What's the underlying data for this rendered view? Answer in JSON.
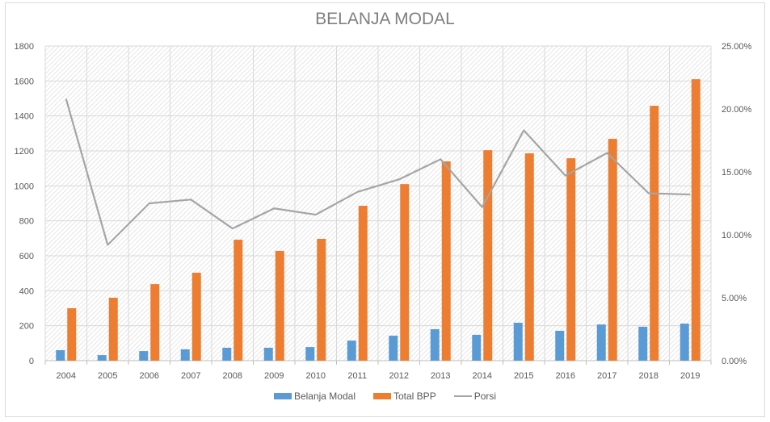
{
  "chart_data": {
    "type": "bar",
    "title": "BELANJA MODAL",
    "xlabel": "",
    "ylabel": "",
    "categories": [
      "2004",
      "2005",
      "2006",
      "2007",
      "2008",
      "2009",
      "2010",
      "2011",
      "2012",
      "2013",
      "2014",
      "2015",
      "2016",
      "2017",
      "2018",
      "2019"
    ],
    "series": [
      {
        "name": "Belanja Modal",
        "type": "bar",
        "axis": "left",
        "color": "#5b9bd5",
        "values": [
          60,
          32,
          55,
          65,
          74,
          74,
          78,
          115,
          143,
          180,
          148,
          217,
          171,
          207,
          194,
          212
        ]
      },
      {
        "name": "Total BPP",
        "type": "bar",
        "axis": "left",
        "color": "#ed7d31",
        "values": [
          300,
          360,
          438,
          503,
          692,
          628,
          697,
          886,
          1010,
          1140,
          1204,
          1186,
          1158,
          1269,
          1458,
          1610
        ]
      },
      {
        "name": "Porsi",
        "type": "line",
        "axis": "right",
        "color": "#a5a5a5",
        "values": [
          0.208,
          0.092,
          0.125,
          0.128,
          0.105,
          0.121,
          0.116,
          0.134,
          0.144,
          0.16,
          0.122,
          0.183,
          0.147,
          0.165,
          0.133,
          0.132
        ]
      }
    ],
    "ylim": [
      0,
      1800
    ],
    "yticks": [
      "0",
      "200",
      "400",
      "600",
      "800",
      "1000",
      "1200",
      "1400",
      "1600",
      "1800"
    ],
    "y2lim": [
      0,
      0.25
    ],
    "y2ticks": [
      "0.00%",
      "5.00%",
      "10.00%",
      "15.00%",
      "20.00%",
      "25.00%"
    ],
    "grid": true,
    "legend_position": "bottom"
  },
  "legend": {
    "items": [
      {
        "label": "Belanja Modal"
      },
      {
        "label": "Total BPP"
      },
      {
        "label": "Porsi"
      }
    ]
  }
}
